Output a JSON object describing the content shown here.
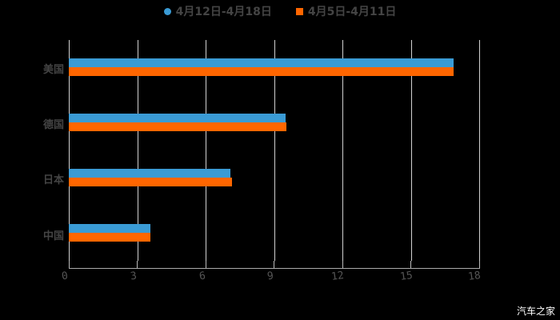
{
  "chart_data": {
    "type": "bar",
    "orientation": "horizontal",
    "title": "",
    "xlabel": "",
    "ylabel": "",
    "categories": [
      "美国",
      "德国",
      "日本",
      "中国"
    ],
    "series": [
      {
        "name": "4月12日-4月18日",
        "color": "#3a9bd5",
        "values": [
          16.87,
          9.5,
          7.09,
          3.58
        ]
      },
      {
        "name": "4月5日-4月11日",
        "color": "#ff6600",
        "values": [
          16.87,
          9.54,
          7.16,
          3.58
        ]
      }
    ],
    "xlim": [
      0,
      18
    ],
    "xticks": [
      "0",
      "3",
      "6",
      "9",
      "12",
      "15",
      "18"
    ],
    "grid": true,
    "legend_position": "top"
  },
  "legend": [
    {
      "label": "4月12日-4月18日",
      "color": "#3a9bd5",
      "marker": "circle"
    },
    {
      "label": "4月5日-4月11日",
      "color": "#ff6600",
      "marker": "square"
    }
  ],
  "watermark": "汽车之家"
}
